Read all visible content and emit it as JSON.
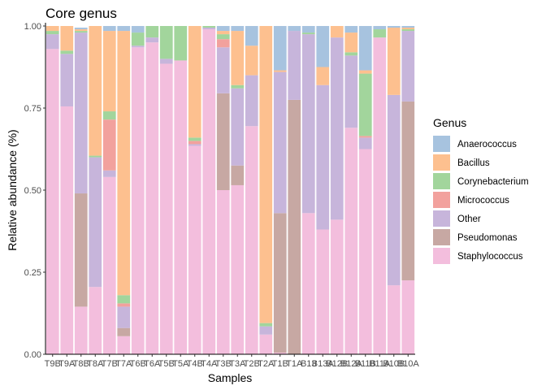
{
  "chart_data": {
    "type": "bar",
    "stacked": true,
    "title": "Core genus",
    "xlabel": "Samples",
    "ylabel": "Relative abundance (%)",
    "ylim": [
      0,
      1
    ],
    "yticks": [
      "0.00",
      "0.25",
      "0.50",
      "0.75",
      "1.00"
    ],
    "legend_title": "Genus",
    "legend_position": "right",
    "categories": [
      "T9B",
      "T9A",
      "T8B",
      "T8A",
      "T7B",
      "T7A",
      "T6B",
      "T6A",
      "T5B",
      "T5A",
      "T4B",
      "T4A",
      "T3B",
      "T3A",
      "T2B",
      "T2A",
      "T1B",
      "T1A",
      "B13",
      "B13A",
      "B12B",
      "B12A",
      "B11B",
      "B11A",
      "B10B",
      "B10A"
    ],
    "tick_labels": [
      "T9B",
      "T9A",
      "T8B",
      "T8A",
      "T7B",
      "T7A",
      "T6B",
      "T6A",
      "T5B",
      "T5A",
      "T4B",
      "T4A",
      "T3B",
      "T3A",
      "T2B",
      "T2A",
      "T1B",
      "T1A",
      "B13",
      "B13A",
      "B12B",
      "B12A",
      "B11B",
      "B11A",
      "B10B",
      "B10A"
    ],
    "series": [
      {
        "name": "Staphylococcus",
        "color": "#F3BEDD",
        "values": [
          0.93,
          0.755,
          0.145,
          0.205,
          0.54,
          0.055,
          0.935,
          0.95,
          0.885,
          0.895,
          0.635,
          0.99,
          0.5,
          0.515,
          0.695,
          0.06,
          0.005,
          0.0,
          0.43,
          0.38,
          0.41,
          0.69,
          0.625,
          0.965,
          0.21,
          0.225
        ]
      },
      {
        "name": "Pseudomonas",
        "color": "#C7A8A3",
        "values": [
          0,
          0,
          0.345,
          0,
          0,
          0.025,
          0,
          0,
          0,
          0,
          0,
          0,
          0.295,
          0.06,
          0,
          0,
          0.425,
          0.775,
          0,
          0,
          0,
          0,
          0,
          0,
          0,
          0.545
        ]
      },
      {
        "name": "Other",
        "color": "#C7B5DB",
        "values": [
          0.045,
          0.16,
          0.49,
          0.395,
          0.02,
          0.065,
          0.005,
          0.015,
          0.015,
          0,
          0.005,
          0.005,
          0.14,
          0.235,
          0.155,
          0.025,
          0.43,
          0.21,
          0.545,
          0.44,
          0.555,
          0.22,
          0.035,
          0,
          0.58,
          0.215
        ]
      },
      {
        "name": "Micrococcus",
        "color": "#F2A19D",
        "values": [
          0,
          0,
          0,
          0,
          0.155,
          0.01,
          0,
          0,
          0,
          0,
          0.01,
          0,
          0.025,
          0,
          0,
          0,
          0,
          0,
          0,
          0,
          0,
          0,
          0.005,
          0,
          0,
          0
        ]
      },
      {
        "name": "Corynebacterium",
        "color": "#A2D59C",
        "values": [
          0.01,
          0.01,
          0.005,
          0.005,
          0.025,
          0.025,
          0.04,
          0.035,
          0.1,
          0.105,
          0.01,
          0.005,
          0.015,
          0.01,
          0,
          0.01,
          0,
          0,
          0.005,
          0,
          0,
          0.01,
          0.19,
          0.025,
          0,
          0.005
        ]
      },
      {
        "name": "Bacillus",
        "color": "#FDC08F",
        "values": [
          0.015,
          0.075,
          0.005,
          0.395,
          0.245,
          0.805,
          0,
          0,
          0.0,
          0,
          0.34,
          0,
          0.01,
          0.165,
          0.09,
          0.905,
          0.005,
          0,
          0,
          0.055,
          0.035,
          0.06,
          0.01,
          0,
          0.205,
          0.005
        ]
      },
      {
        "name": "Anaerococcus",
        "color": "#A7C3DF",
        "values": [
          0,
          0,
          0.005,
          0,
          0.015,
          0.015,
          0.02,
          0,
          0,
          0,
          0,
          0,
          0.015,
          0.015,
          0.06,
          0,
          0.135,
          0.015,
          0.02,
          0.125,
          0,
          0.02,
          0.135,
          0.01,
          0.005,
          0.005
        ]
      }
    ],
    "legend_order": [
      "Anaerococcus",
      "Bacillus",
      "Corynebacterium",
      "Micrococcus",
      "Other",
      "Pseudomonas",
      "Staphylococcus"
    ]
  }
}
